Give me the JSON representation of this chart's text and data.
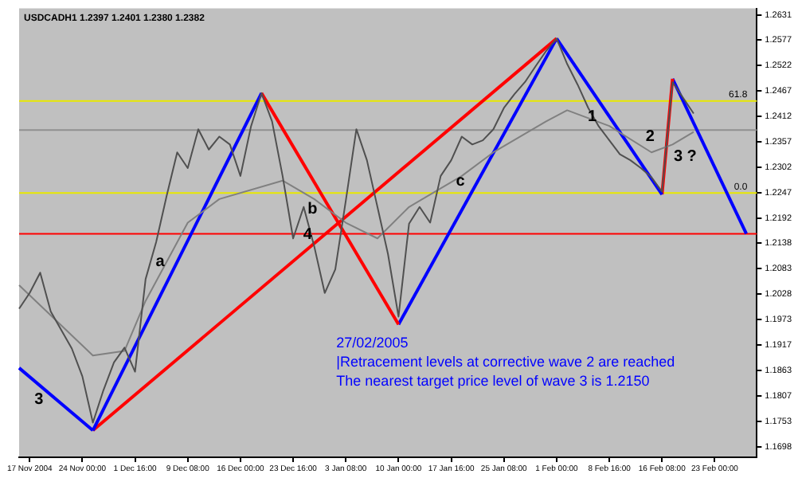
{
  "chart_data": {
    "type": "line",
    "title": "USDCADH1 1.2397 1.2401 1.2380 1.2382",
    "categories": [
      null,
      "17 Nov 2004",
      null,
      null,
      null,
      null,
      "24 Nov 00:00",
      null,
      null,
      null,
      null,
      "1 Dec 16:00",
      null,
      null,
      null,
      null,
      "9 Dec 08:00",
      null,
      null,
      null,
      null,
      "16 Dec 00:00",
      null,
      null,
      null,
      null,
      "23 Dec 16:00",
      null,
      null,
      null,
      null,
      "3 Jan 08:00",
      null,
      null,
      null,
      null,
      "10 Jan 00:00",
      null,
      null,
      null,
      null,
      "17 Jan 16:00",
      null,
      null,
      null,
      null,
      "25 Jan 08:00",
      null,
      null,
      null,
      null,
      "1 Feb 00:00",
      null,
      null,
      null,
      null,
      "8 Feb 16:00",
      null,
      null,
      null,
      null,
      "16 Feb 08:00",
      null,
      null,
      null,
      null,
      "23 Feb 00:00",
      null,
      null,
      null,
      null
    ],
    "ylim": [
      1.1675,
      1.2645
    ],
    "yticks": [
      1.2631,
      1.2577,
      1.2522,
      1.2467,
      1.2412,
      1.2357,
      1.2302,
      1.2247,
      1.2192,
      1.2138,
      1.2083,
      1.2028,
      1.1973,
      1.1917,
      1.1863,
      1.1807,
      1.1753,
      1.1698
    ],
    "grid": false,
    "legend": false,
    "marker": "none",
    "line_style": "solid",
    "series": [
      {
        "color": "#505050",
        "values": [
          1.1996,
          1.203,
          1.2074,
          1.199,
          1.195,
          1.191,
          1.185,
          1.175,
          1.182,
          1.188,
          1.1912,
          1.186,
          1.206,
          1.214,
          1.224,
          1.2334,
          1.23,
          1.2384,
          1.234,
          1.2368,
          1.2351,
          1.2283,
          1.239,
          1.2462,
          1.2401,
          1.2283,
          1.2148,
          1.2216,
          1.2131,
          1.203,
          1.2081,
          1.223,
          1.2384,
          1.2317,
          1.2216,
          1.2114,
          1.1979,
          1.218,
          1.2216,
          1.2182,
          1.2283,
          1.2317,
          1.2368,
          1.2351,
          1.236,
          1.2384,
          1.243,
          1.246,
          1.2486,
          1.252,
          1.2553,
          1.258,
          1.2525,
          1.248,
          1.243,
          1.239,
          1.236,
          1.233,
          1.2317,
          1.23,
          1.228,
          1.2249,
          1.2486,
          1.2452,
          1.2418,
          null,
          null,
          null,
          null,
          null,
          null
        ]
      },
      {
        "color": "#808080",
        "values": [
          1.2047,
          null,
          null,
          null,
          null,
          null,
          null,
          1.1895,
          null,
          null,
          1.1905,
          null,
          1.2013,
          null,
          null,
          null,
          1.2182,
          null,
          null,
          1.2233,
          null,
          null,
          null,
          null,
          null,
          1.2273,
          null,
          null,
          1.2233,
          null,
          null,
          1.2182,
          null,
          null,
          1.2148,
          null,
          null,
          1.2216,
          null,
          null,
          null,
          null,
          1.2283,
          null,
          null,
          1.2334,
          null,
          null,
          null,
          null,
          1.2401,
          null,
          1.2425,
          null,
          null,
          null,
          1.2391,
          null,
          null,
          null,
          1.2334,
          null,
          1.2351,
          null,
          1.2378,
          null,
          null,
          null,
          null,
          null,
          null
        ]
      },
      {
        "name": "3",
        "color": "#0000ff",
        "values": [
          1.1868,
          null,
          null,
          null,
          null,
          null,
          null,
          1.1733,
          null,
          null,
          null,
          null,
          null,
          null,
          null,
          null,
          null,
          null,
          null,
          null,
          null,
          null,
          null,
          null,
          null,
          null,
          null,
          null,
          null,
          null,
          null,
          null,
          null,
          null,
          null,
          null,
          null,
          null,
          null,
          null,
          null,
          null,
          null,
          null,
          null,
          null,
          null,
          null,
          null,
          null,
          null,
          null,
          null,
          null,
          null,
          null,
          null,
          null,
          null,
          null,
          null,
          null,
          null,
          null,
          null,
          null,
          null,
          null,
          null,
          null,
          null
        ]
      },
      {
        "name": "a",
        "color": "#0000ff",
        "values": [
          null,
          null,
          null,
          null,
          null,
          null,
          null,
          1.1733,
          null,
          null,
          null,
          null,
          null,
          null,
          null,
          null,
          null,
          null,
          null,
          null,
          null,
          null,
          null,
          1.2462,
          null,
          null,
          null,
          null,
          null,
          null,
          null,
          null,
          null,
          null,
          null,
          null,
          null,
          null,
          null,
          null,
          null,
          null,
          null,
          null,
          null,
          null,
          null,
          null,
          null,
          null,
          null,
          null,
          null,
          null,
          null,
          null,
          null,
          null,
          null,
          null,
          null,
          null,
          null,
          null,
          null,
          null,
          null,
          null,
          null,
          null,
          null
        ]
      },
      {
        "name": "b",
        "color": "#ff0000",
        "values": [
          null,
          null,
          null,
          null,
          null,
          null,
          null,
          null,
          null,
          null,
          null,
          null,
          null,
          null,
          null,
          null,
          null,
          null,
          null,
          null,
          null,
          null,
          null,
          1.2462,
          null,
          null,
          null,
          null,
          null,
          null,
          null,
          null,
          null,
          null,
          null,
          null,
          1.1962,
          null,
          null,
          null,
          null,
          null,
          null,
          null,
          null,
          null,
          null,
          null,
          null,
          null,
          null,
          null,
          null,
          null,
          null,
          null,
          null,
          null,
          null,
          null,
          null,
          null,
          null,
          null,
          null,
          null,
          null,
          null,
          null,
          null,
          null
        ]
      },
      {
        "name": "4",
        "color": "#ff0000",
        "values": [
          null,
          null,
          null,
          null,
          null,
          null,
          null,
          1.1733,
          null,
          null,
          null,
          null,
          null,
          null,
          null,
          null,
          null,
          null,
          null,
          null,
          null,
          null,
          null,
          null,
          null,
          null,
          null,
          null,
          null,
          null,
          null,
          null,
          null,
          null,
          null,
          null,
          null,
          null,
          null,
          null,
          null,
          null,
          null,
          null,
          null,
          null,
          null,
          null,
          null,
          null,
          null,
          1.258,
          null,
          null,
          null,
          null,
          null,
          null,
          null,
          null,
          null,
          null,
          null,
          null,
          null,
          null,
          null,
          null,
          null,
          null,
          null
        ]
      },
      {
        "name": "c",
        "color": "#0000ff",
        "values": [
          null,
          null,
          null,
          null,
          null,
          null,
          null,
          null,
          null,
          null,
          null,
          null,
          null,
          null,
          null,
          null,
          null,
          null,
          null,
          null,
          null,
          null,
          null,
          null,
          null,
          null,
          null,
          null,
          null,
          null,
          null,
          null,
          null,
          null,
          null,
          null,
          1.1962,
          null,
          null,
          null,
          null,
          null,
          null,
          null,
          null,
          null,
          null,
          null,
          null,
          null,
          null,
          1.258,
          null,
          null,
          null,
          null,
          null,
          null,
          null,
          null,
          null,
          null,
          null,
          null,
          null,
          null,
          null,
          null,
          null,
          null,
          null
        ]
      },
      {
        "name": "1",
        "color": "#0000ff",
        "values": [
          null,
          null,
          null,
          null,
          null,
          null,
          null,
          null,
          null,
          null,
          null,
          null,
          null,
          null,
          null,
          null,
          null,
          null,
          null,
          null,
          null,
          null,
          null,
          null,
          null,
          null,
          null,
          null,
          null,
          null,
          null,
          null,
          null,
          null,
          null,
          null,
          null,
          null,
          null,
          null,
          null,
          null,
          null,
          null,
          null,
          null,
          null,
          null,
          null,
          null,
          null,
          1.258,
          null,
          null,
          null,
          null,
          null,
          null,
          null,
          null,
          null,
          1.2243,
          null,
          null,
          null,
          null,
          null,
          null,
          null,
          null,
          null
        ]
      },
      {
        "name": "2",
        "color": "#ff0000",
        "values": [
          null,
          null,
          null,
          null,
          null,
          null,
          null,
          null,
          null,
          null,
          null,
          null,
          null,
          null,
          null,
          null,
          null,
          null,
          null,
          null,
          null,
          null,
          null,
          null,
          null,
          null,
          null,
          null,
          null,
          null,
          null,
          null,
          null,
          null,
          null,
          null,
          null,
          null,
          null,
          null,
          null,
          null,
          null,
          null,
          null,
          null,
          null,
          null,
          null,
          null,
          null,
          null,
          null,
          null,
          null,
          null,
          null,
          null,
          null,
          null,
          null,
          1.2243,
          1.2493,
          null,
          null,
          null,
          null,
          null,
          null,
          null,
          null
        ]
      },
      {
        "name": "3 ?",
        "color": "#0000ff",
        "values": [
          null,
          null,
          null,
          null,
          null,
          null,
          null,
          null,
          null,
          null,
          null,
          null,
          null,
          null,
          null,
          null,
          null,
          null,
          null,
          null,
          null,
          null,
          null,
          null,
          null,
          null,
          null,
          null,
          null,
          null,
          null,
          null,
          null,
          null,
          null,
          null,
          null,
          null,
          null,
          null,
          null,
          null,
          null,
          null,
          null,
          null,
          null,
          null,
          null,
          null,
          null,
          null,
          null,
          null,
          null,
          null,
          null,
          null,
          null,
          null,
          null,
          null,
          1.2493,
          null,
          null,
          null,
          null,
          null,
          null,
          1.2158,
          null
        ]
      }
    ],
    "ref_lines": [
      {
        "axis": "y",
        "value": 1.2158,
        "color": "#ff0000"
      },
      {
        "axis": "y",
        "value": 1.2382,
        "color": "#909090"
      },
      {
        "axis": "y",
        "value": 1.2445,
        "color": "#e8e800"
      },
      {
        "axis": "y",
        "value": 1.2246,
        "color": "#e8e800"
      }
    ],
    "annotations": [
      {
        "text": "61.8",
        "y": 1.2445
      },
      {
        "text": "0.0",
        "y": 1.2246
      },
      "27/02/2005",
      "|Retracement levels at corrective wave 2 are reached",
      "The nearest target price level of wave 3 is 1.2150"
    ]
  }
}
